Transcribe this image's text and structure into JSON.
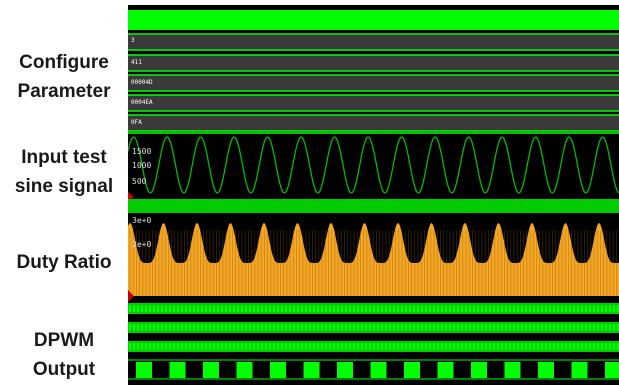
{
  "labels": {
    "configure": [
      "Configure",
      "Parameter"
    ],
    "input": [
      "Input test",
      "sine signal"
    ],
    "duty": [
      "Duty Ratio"
    ],
    "dpwm": [
      "DPWM",
      "Output"
    ]
  },
  "config_values": [
    "3",
    "411",
    "00004D",
    "0004EA",
    "0FA"
  ],
  "sine_ticks": [
    "1500",
    "1000",
    "500"
  ],
  "duty_ticks": [
    "3e+0",
    "2e+0"
  ],
  "colors": {
    "signal_green": "#00ff00",
    "bus_gray": "#3a3a3a",
    "duty_orange": "#f5a623",
    "marker_red": "#cc0000"
  }
}
